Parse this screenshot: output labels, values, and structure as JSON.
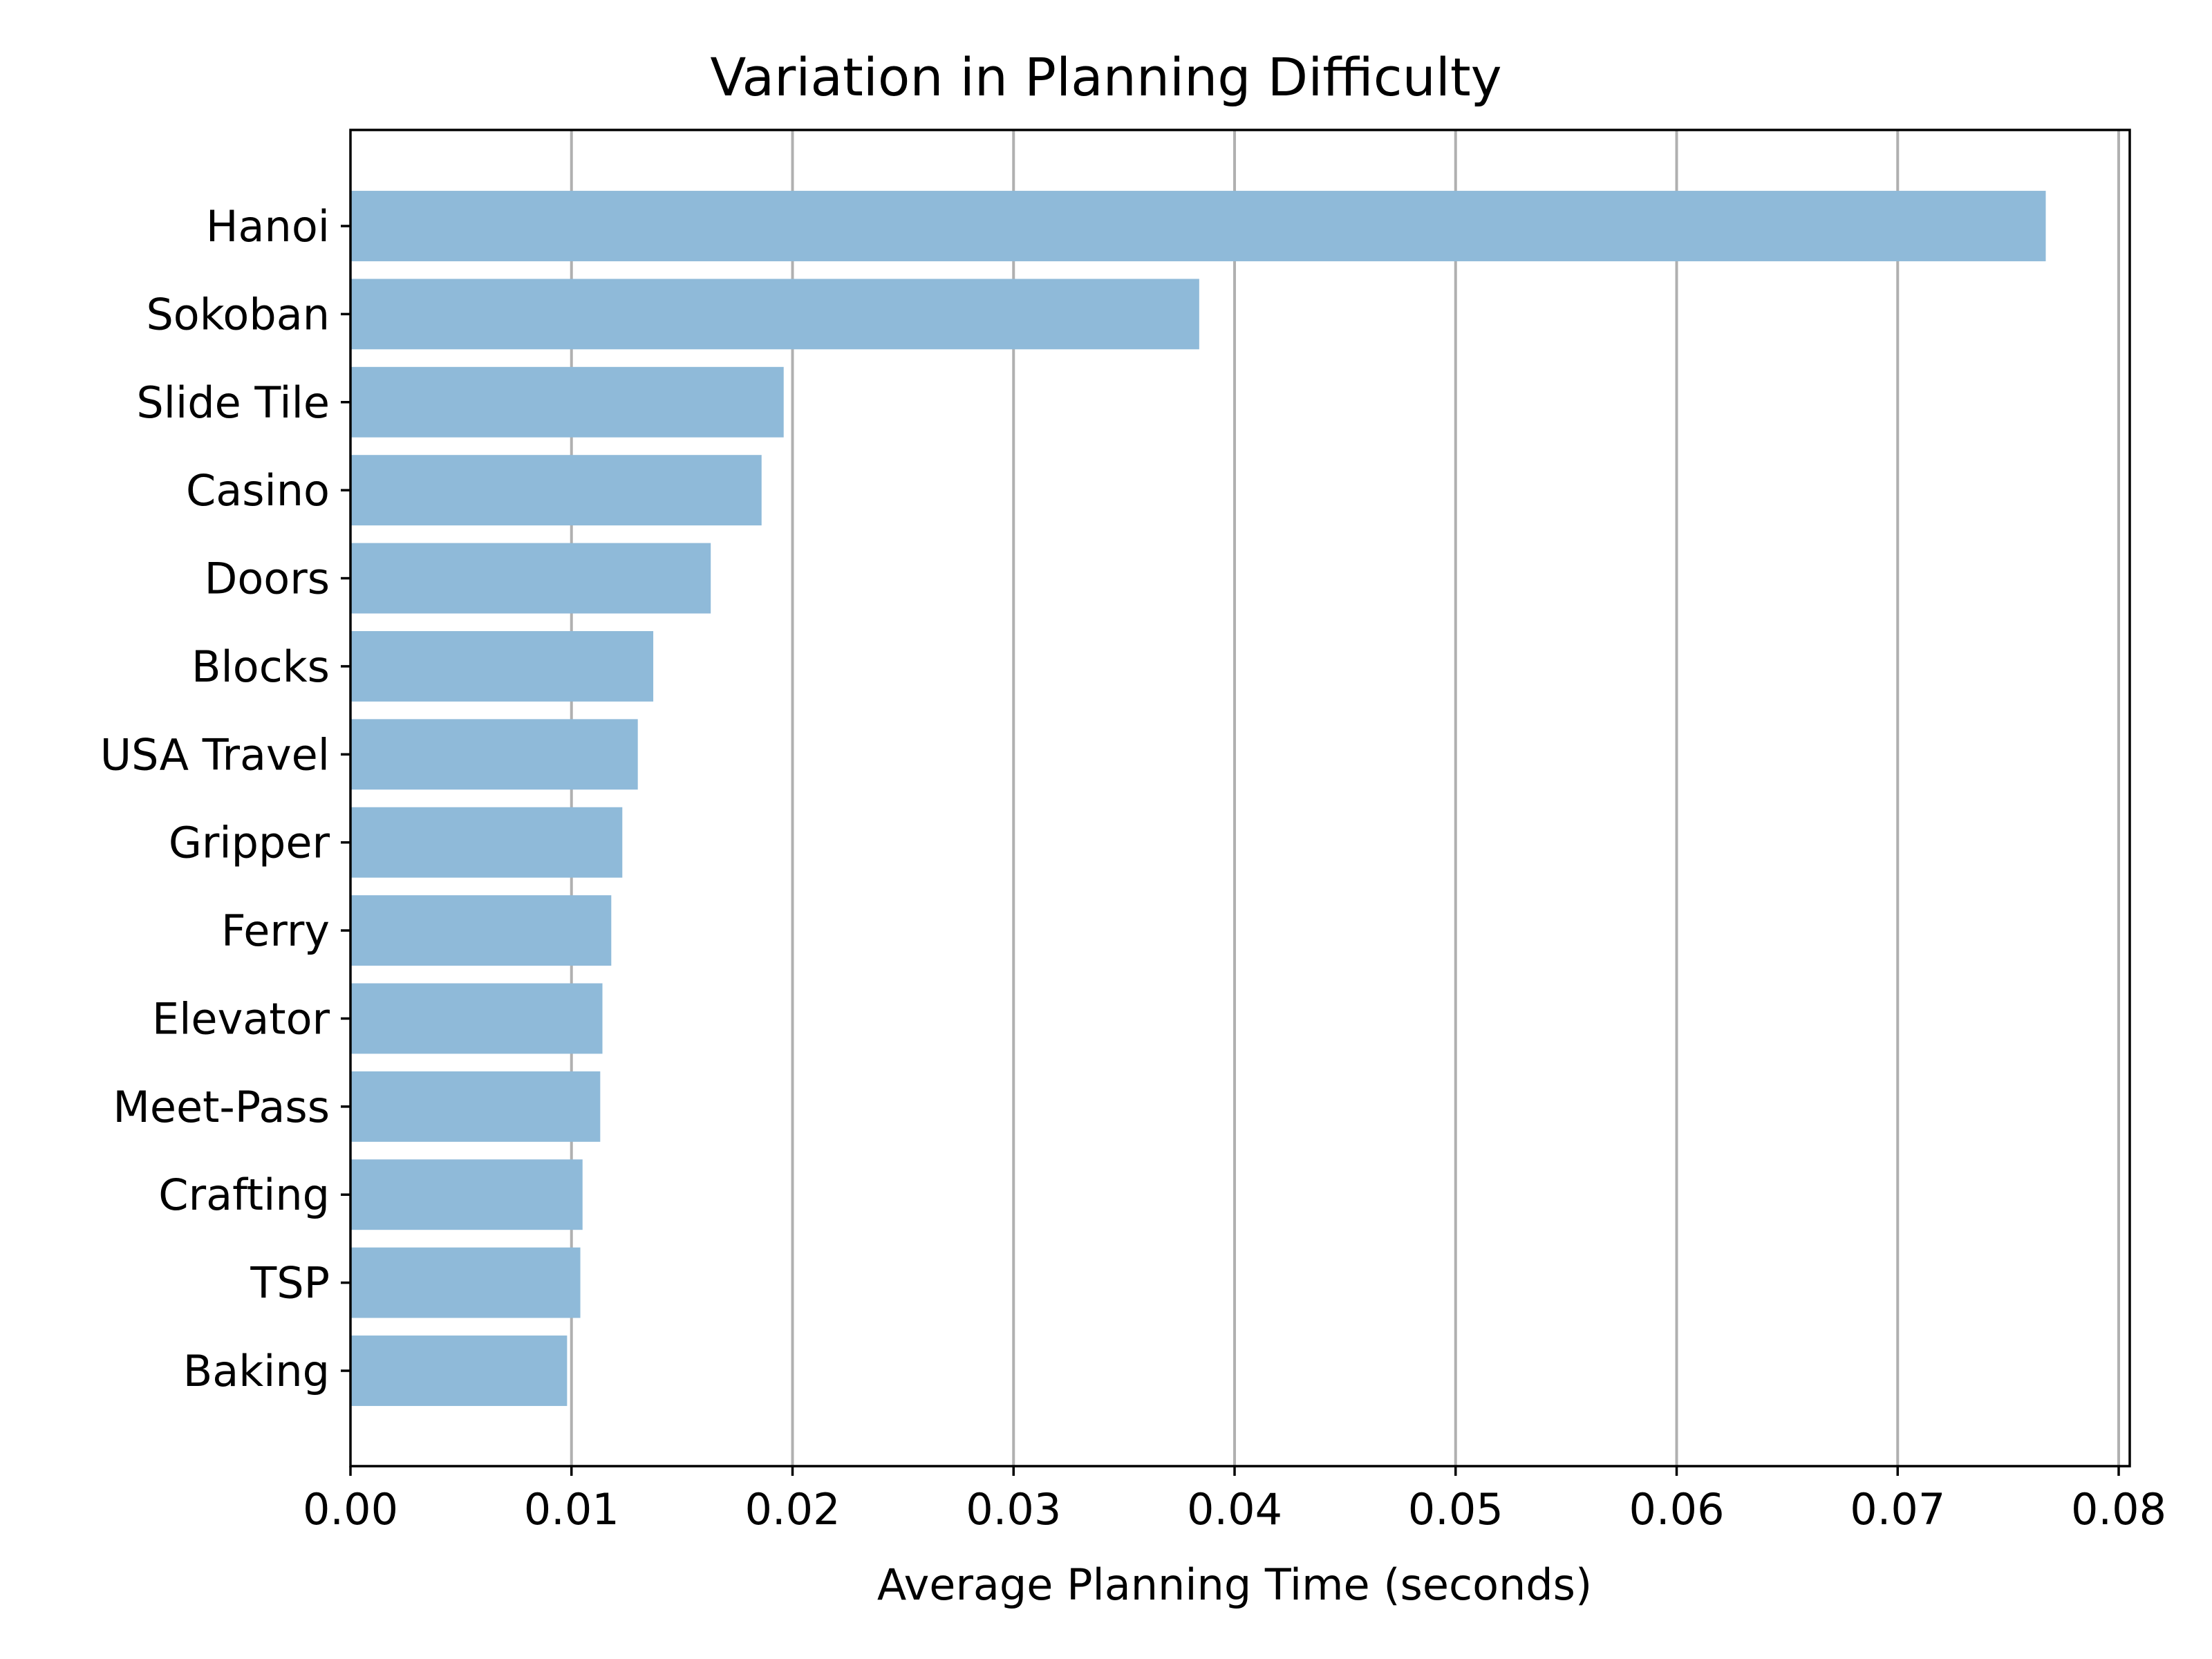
{
  "chart_data": {
    "type": "bar",
    "orientation": "horizontal",
    "title": "Variation in Planning Difficulty",
    "xlabel": "Average Planning Time (seconds)",
    "ylabel": "",
    "categories": [
      "Hanoi",
      "Sokoban",
      "Slide Tile",
      "Casino",
      "Doors",
      "Blocks",
      "USA Travel",
      "Gripper",
      "Ferry",
      "Elevator",
      "Meet-Pass",
      "Crafting",
      "TSP",
      "Baking"
    ],
    "values": [
      0.0767,
      0.0384,
      0.0196,
      0.0186,
      0.0163,
      0.0137,
      0.013,
      0.0123,
      0.0118,
      0.0114,
      0.0113,
      0.0105,
      0.0104,
      0.0098
    ],
    "xlim": [
      0.0,
      0.0805
    ],
    "xticks": [
      "0.00",
      "0.01",
      "0.02",
      "0.03",
      "0.04",
      "0.05",
      "0.06",
      "0.07",
      "0.08"
    ],
    "xtick_values": [
      0.0,
      0.01,
      0.02,
      0.03,
      0.04,
      0.05,
      0.06,
      0.07,
      0.08
    ],
    "grid": "vertical",
    "bar_color": "#8fbad9"
  }
}
